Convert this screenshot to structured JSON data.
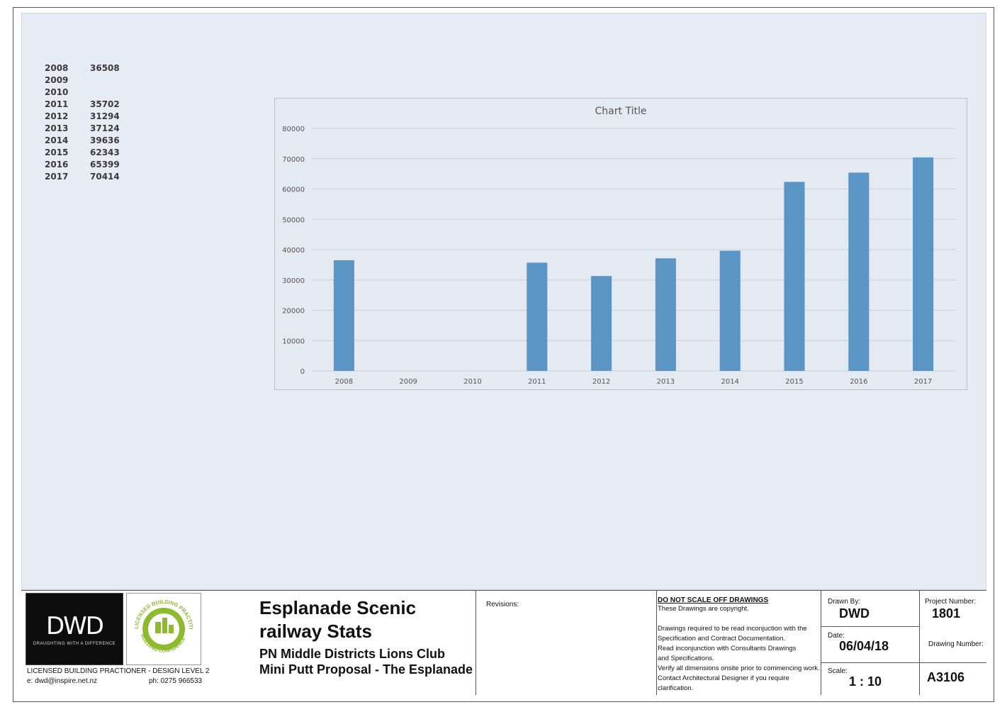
{
  "data_table": [
    {
      "year": "2008",
      "value": "36508"
    },
    {
      "year": "2009",
      "value": ""
    },
    {
      "year": "2010",
      "value": ""
    },
    {
      "year": "2011",
      "value": "35702"
    },
    {
      "year": "2012",
      "value": "31294"
    },
    {
      "year": "2013",
      "value": "37124"
    },
    {
      "year": "2014",
      "value": "39636"
    },
    {
      "year": "2015",
      "value": "62343"
    },
    {
      "year": "2016",
      "value": "65399"
    },
    {
      "year": "2017",
      "value": "70414"
    }
  ],
  "chart_data": {
    "type": "bar",
    "title": "Chart Title",
    "categories": [
      "2008",
      "2009",
      "2010",
      "2011",
      "2012",
      "2013",
      "2014",
      "2015",
      "2016",
      "2017"
    ],
    "values": [
      36508,
      0,
      0,
      35702,
      31294,
      37124,
      39636,
      62343,
      65399,
      70414
    ],
    "yticks": [
      "0",
      "10000",
      "20000",
      "30000",
      "40000",
      "50000",
      "60000",
      "70000",
      "80000"
    ],
    "ylim": [
      0,
      80000
    ],
    "grid": true,
    "bar_color": "#5b95c6"
  },
  "title_block": {
    "logo_text": "DWD",
    "logo_tagline": "DRAUGHTING WITH A DIFFERENCE",
    "badge_text_top": "LICENSED BUILDING PRACTITIONER",
    "badge_text_bottom": "BUILDING CONFIDENCE",
    "licence": "LICENSED BUILDING PRACTIONER - DESIGN LEVEL 2",
    "email": "e: dwd@inspire.net.nz",
    "phone": "ph: 0275 966533",
    "title_line1": "Esplanade Scenic",
    "title_line2": "railway Stats",
    "subtitle_line1": "PN  Middle Districts Lions Club",
    "subtitle_line2": "Mini Putt Proposal - The Esplanade",
    "revisions_label": "Revisions:",
    "notes_heading": "DO NOT SCALE OFF DRAWINGS",
    "notes": [
      "These Drawings are copyright.",
      "",
      "Drawings required to be read inconjuction with the",
      "Specification and Contract Documentation.",
      "Read inconjunction with Consultants Drawings",
      "and Specifications.",
      "Verify all dimensions onsite prior to commencing work.",
      "Contact Architectural  Designer if you require",
      "clarification."
    ],
    "drawn_by_label": "Drawn By:",
    "drawn_by": "DWD",
    "date_label": "Date:",
    "date": "06/04/18",
    "scale_label": "Scale:",
    "scale": "1 : 10",
    "project_number_label": "Project Number:",
    "project_number": "1801",
    "drawing_number_label": "Drawing Number:",
    "drawing_number": "A3106"
  }
}
